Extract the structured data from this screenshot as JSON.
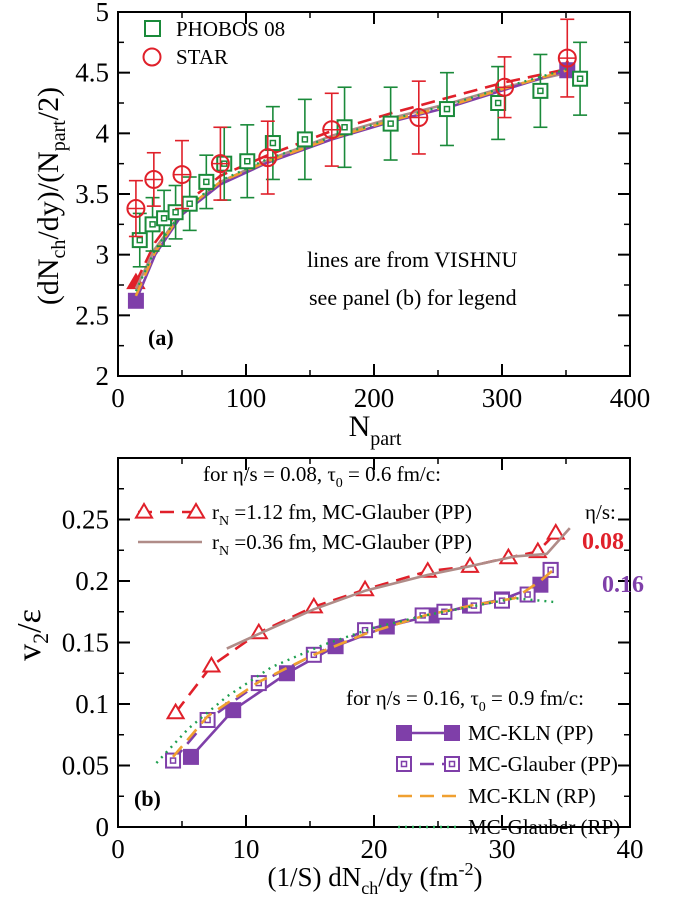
{
  "chart_data": [
    {
      "id": "a",
      "type": "scatter",
      "panel_label": "(a)",
      "xlabel": "N",
      "xlabel_sub": "part",
      "ylabel_parts": [
        "(dN",
        "ch",
        "/dy)/(N",
        "part",
        "/2)"
      ],
      "xlim": [
        0,
        400
      ],
      "ylim": [
        2,
        5
      ],
      "xticks": [
        "0",
        "100",
        "200",
        "300",
        "400"
      ],
      "yticks": [
        "2",
        "2.5",
        "3",
        "3.5",
        "4",
        "4.5",
        "5"
      ],
      "annotations": [
        "lines are from VISHNU",
        "see panel (b) for legend"
      ],
      "legend_position": "top-left",
      "series": [
        {
          "name": "PHOBOS 08",
          "kind": "markers",
          "marker": "square-open",
          "color": "#1a8a3a",
          "points": [
            {
              "x": 17,
              "y": 3.12,
              "err": 0.22
            },
            {
              "x": 27,
              "y": 3.25,
              "err": 0.22
            },
            {
              "x": 36,
              "y": 3.3,
              "err": 0.23
            },
            {
              "x": 45,
              "y": 3.35,
              "err": 0.22
            },
            {
              "x": 56,
              "y": 3.42,
              "err": 0.22
            },
            {
              "x": 69,
              "y": 3.6,
              "err": 0.22
            },
            {
              "x": 83,
              "y": 3.75,
              "err": 0.3
            },
            {
              "x": 101,
              "y": 3.77,
              "err": 0.3
            },
            {
              "x": 121,
              "y": 3.92,
              "err": 0.3
            },
            {
              "x": 146,
              "y": 3.95,
              "err": 0.33
            },
            {
              "x": 177,
              "y": 4.05,
              "err": 0.33
            },
            {
              "x": 213,
              "y": 4.08,
              "err": 0.3
            },
            {
              "x": 257,
              "y": 4.2,
              "err": 0.3
            },
            {
              "x": 297,
              "y": 4.25,
              "err": 0.3
            },
            {
              "x": 330,
              "y": 4.35,
              "err": 0.3
            },
            {
              "x": 361,
              "y": 4.45,
              "err": 0.3
            }
          ]
        },
        {
          "name": "STAR",
          "kind": "markers",
          "marker": "circle-open",
          "color": "#e0202a",
          "points": [
            {
              "x": 14,
              "y": 3.38,
              "err": 0.23
            },
            {
              "x": 28,
              "y": 3.62,
              "err": 0.22
            },
            {
              "x": 50,
              "y": 3.66,
              "err": 0.28
            },
            {
              "x": 80,
              "y": 3.75,
              "err": 0.3
            },
            {
              "x": 117,
              "y": 3.8,
              "err": 0.3
            },
            {
              "x": 167,
              "y": 4.03,
              "err": 0.3
            },
            {
              "x": 235,
              "y": 4.13,
              "err": 0.3
            },
            {
              "x": 302,
              "y": 4.38,
              "err": 0.25
            },
            {
              "x": 351,
              "y": 4.62,
              "err": 0.32
            }
          ]
        },
        {
          "name": "",
          "kind": "line",
          "dash": "dashed",
          "marker": "triangle",
          "color": "#e0202a",
          "points": [
            [
              14,
              2.77
            ],
            [
              29,
              3.1
            ],
            [
              50,
              3.4
            ],
            [
              80,
              3.65
            ],
            [
              117,
              3.82
            ],
            [
              167,
              4.02
            ],
            [
              215,
              4.17
            ],
            [
              260,
              4.3
            ],
            [
              302,
              4.42
            ],
            [
              351,
              4.53
            ]
          ]
        },
        {
          "name": "",
          "kind": "line",
          "dash": "solid",
          "color": "#b08c88",
          "points": [
            [
              14,
              2.72
            ],
            [
              29,
              3.05
            ],
            [
              50,
              3.35
            ],
            [
              80,
              3.6
            ],
            [
              117,
              3.78
            ],
            [
              167,
              3.98
            ],
            [
              215,
              4.13
            ],
            [
              260,
              4.25
            ],
            [
              302,
              4.38
            ],
            [
              351,
              4.5
            ]
          ]
        },
        {
          "name": "",
          "kind": "line",
          "dash": "solid",
          "marker": "square-filled",
          "color": "#7f3fa9",
          "points": [
            [
              14,
              2.62
            ],
            [
              29,
              3.0
            ],
            [
              50,
              3.33
            ],
            [
              80,
              3.58
            ],
            [
              117,
              3.76
            ],
            [
              167,
              3.95
            ],
            [
              215,
              4.1
            ],
            [
              260,
              4.22
            ],
            [
              302,
              4.36
            ],
            [
              351,
              4.52
            ]
          ]
        },
        {
          "name": "",
          "kind": "line",
          "dash": "dashed",
          "color": "#f0a030",
          "points": [
            [
              14,
              2.66
            ],
            [
              29,
              3.02
            ],
            [
              50,
              3.35
            ],
            [
              80,
              3.6
            ],
            [
              117,
              3.77
            ],
            [
              167,
              3.96
            ],
            [
              215,
              4.11
            ],
            [
              260,
              4.23
            ],
            [
              302,
              4.37
            ],
            [
              351,
              4.52
            ]
          ]
        },
        {
          "name": "",
          "kind": "line",
          "dash": "dotted",
          "color": "#20a050",
          "points": [
            [
              14,
              2.7
            ],
            [
              29,
              3.04
            ],
            [
              50,
              3.36
            ],
            [
              80,
              3.61
            ],
            [
              117,
              3.79
            ],
            [
              167,
              3.97
            ],
            [
              215,
              4.12
            ],
            [
              260,
              4.24
            ],
            [
              302,
              4.38
            ],
            [
              351,
              4.53
            ]
          ]
        }
      ]
    },
    {
      "id": "b",
      "type": "line",
      "panel_label": "(b)",
      "xlabel_parts": [
        "(1/S) dN",
        "ch",
        "/dy (fm",
        "-2",
        ")"
      ],
      "ylabel": "v",
      "ylabel_sub": "2",
      "ylabel_tail": "/ε",
      "xlim": [
        0,
        40
      ],
      "ylim": [
        0,
        0.3
      ],
      "xticks": [
        "0",
        "10",
        "20",
        "30",
        "40"
      ],
      "yticks": [
        "0",
        "0.05",
        "0.1",
        "0.15",
        "0.2",
        "0.25"
      ],
      "header_top": "for η/s = 0.08,  τ",
      "header_top_sub": "0",
      "header_top_tail": " = 0.6 fm/c:",
      "header_mid": "for η/s = 0.16,  τ",
      "header_mid_sub": "0",
      "header_mid_tail": " = 0.9 fm/c:",
      "eta_title": "η/s:",
      "eta_08": "0.08",
      "eta_16": "0.16",
      "series": [
        {
          "name": "r",
          "name_sub": "N",
          "name_tail": " =1.12 fm, MC-Glauber (PP)",
          "dash": "dashed",
          "marker": "triangle-open",
          "color": "#e0202a",
          "points": [
            [
              4.5,
              0.093
            ],
            [
              7.3,
              0.131
            ],
            [
              11,
              0.158
            ],
            [
              15.3,
              0.179
            ],
            [
              19.3,
              0.193
            ],
            [
              24.2,
              0.208
            ],
            [
              27.5,
              0.212
            ],
            [
              30.5,
              0.219
            ],
            [
              32.8,
              0.224
            ],
            [
              34.2,
              0.239
            ]
          ]
        },
        {
          "name": "r",
          "name_sub": "N",
          "name_tail": " =0.36 fm, MC-Glauber (PP)",
          "dash": "solid",
          "marker": "none",
          "color": "#b08c88",
          "points": [
            [
              8.5,
              0.145
            ],
            [
              11,
              0.157
            ],
            [
              15.3,
              0.177
            ],
            [
              19.3,
              0.192
            ],
            [
              24.2,
              0.205
            ],
            [
              27.5,
              0.212
            ],
            [
              31,
              0.22
            ],
            [
              33.5,
              0.222
            ],
            [
              35.3,
              0.243
            ]
          ]
        },
        {
          "name": "MC-KLN (PP)",
          "dash": "solid",
          "marker": "square-filled",
          "color": "#7f3fa9",
          "points": [
            [
              5.7,
              0.057
            ],
            [
              9,
              0.095
            ],
            [
              13.2,
              0.125
            ],
            [
              17,
              0.147
            ],
            [
              21,
              0.163
            ],
            [
              24.5,
              0.172
            ],
            [
              27.5,
              0.18
            ],
            [
              30,
              0.185
            ],
            [
              33,
              0.197
            ],
            [
              33.8,
              0.209
            ]
          ]
        },
        {
          "name": "MC-Glauber (PP)",
          "dash": "dashed",
          "marker": "square-open",
          "color": "#7f3fa9",
          "points": [
            [
              4.3,
              0.054
            ],
            [
              7,
              0.087
            ],
            [
              11,
              0.117
            ],
            [
              15.3,
              0.14
            ],
            [
              19.3,
              0.16
            ],
            [
              23.8,
              0.172
            ],
            [
              25.5,
              0.175
            ],
            [
              27.8,
              0.18
            ],
            [
              30,
              0.184
            ],
            [
              32,
              0.189
            ],
            [
              33.8,
              0.209
            ]
          ]
        },
        {
          "name": "MC-KLN (RP)",
          "dash": "dashed",
          "marker": "none",
          "color": "#f0a030",
          "points": [
            [
              4.3,
              0.057
            ],
            [
              7,
              0.09
            ],
            [
              11,
              0.118
            ],
            [
              15.3,
              0.14
            ],
            [
              19.3,
              0.157
            ],
            [
              24,
              0.172
            ],
            [
              28,
              0.181
            ],
            [
              31,
              0.186
            ],
            [
              33,
              0.2
            ],
            [
              34,
              0.209
            ]
          ]
        },
        {
          "name": "MC-Glauber (RP)",
          "dash": "dotted",
          "marker": "none",
          "color": "#20a050",
          "points": [
            [
              3,
              0.052
            ],
            [
              5.5,
              0.08
            ],
            [
              8.5,
              0.106
            ],
            [
              12,
              0.13
            ],
            [
              16,
              0.148
            ],
            [
              20,
              0.162
            ],
            [
              24,
              0.172
            ],
            [
              28,
              0.18
            ],
            [
              31,
              0.186
            ],
            [
              34,
              0.183
            ]
          ]
        }
      ]
    }
  ]
}
